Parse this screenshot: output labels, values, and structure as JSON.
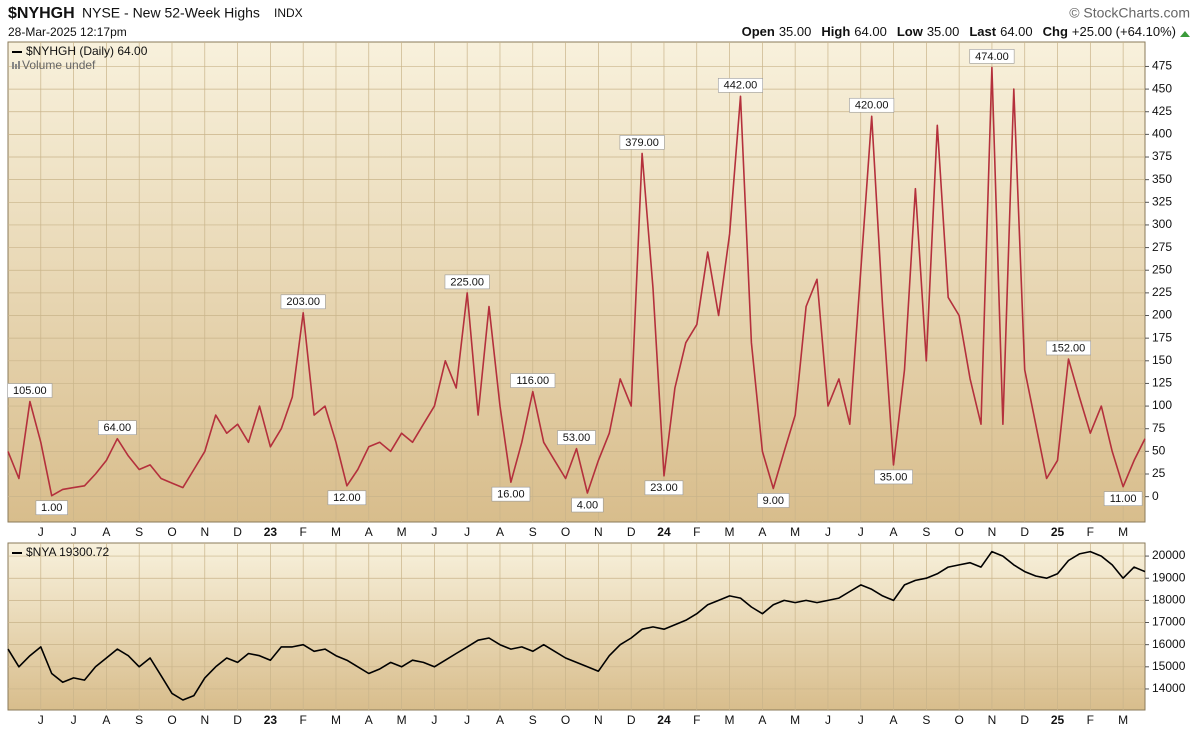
{
  "header": {
    "symbol": "$NYHGH",
    "name": "NYSE - New 52-Week Highs",
    "kind": "INDX",
    "source": "© StockCharts.com",
    "date": "28-Mar-2025 12:17pm",
    "quote": [
      {
        "label": "Open",
        "value": "35.00"
      },
      {
        "label": "High",
        "value": "64.00"
      },
      {
        "label": "Low",
        "value": "35.00"
      },
      {
        "label": "Last",
        "value": "64.00"
      },
      {
        "label": "Chg",
        "value": "+25.00 (+64.10%)"
      }
    ]
  },
  "chart_data": [
    {
      "type": "line",
      "title": "$NYHGH (Daily) 64.00",
      "subtitle": "Volume undef",
      "color": "#b4303c",
      "grid": true,
      "categories": [
        null,
        null,
        null,
        "J",
        null,
        null,
        "J",
        null,
        null,
        "A",
        null,
        null,
        "S",
        null,
        null,
        "O",
        null,
        null,
        "N",
        null,
        null,
        "D",
        null,
        null,
        "23",
        null,
        null,
        "F",
        null,
        null,
        "M",
        null,
        null,
        "A",
        null,
        null,
        "M",
        null,
        null,
        "J",
        null,
        null,
        "J",
        null,
        null,
        "A",
        null,
        null,
        "S",
        null,
        null,
        "O",
        null,
        null,
        "N",
        null,
        null,
        "D",
        null,
        null,
        "24",
        null,
        null,
        "F",
        null,
        null,
        "M",
        null,
        null,
        "A",
        null,
        null,
        "M",
        null,
        null,
        "J",
        null,
        null,
        "J",
        null,
        null,
        "A",
        null,
        null,
        "S",
        null,
        null,
        "O",
        null,
        null,
        "N",
        null,
        null,
        "D",
        null,
        null,
        "25",
        null,
        null,
        "F",
        null,
        null,
        "M",
        null,
        null
      ],
      "values": [
        50,
        20,
        105,
        60,
        1,
        8,
        10,
        12,
        25,
        40,
        64,
        45,
        30,
        35,
        20,
        15,
        10,
        30,
        50,
        90,
        70,
        80,
        60,
        100,
        55,
        75,
        110,
        203,
        90,
        100,
        60,
        12,
        30,
        55,
        60,
        50,
        70,
        60,
        80,
        100,
        150,
        120,
        225,
        90,
        210,
        100,
        16,
        60,
        116,
        60,
        40,
        20,
        53,
        4,
        40,
        70,
        130,
        100,
        379,
        230,
        23,
        120,
        170,
        190,
        270,
        200,
        290,
        442,
        170,
        50,
        9,
        50,
        90,
        210,
        240,
        100,
        130,
        80,
        250,
        420,
        210,
        35,
        140,
        340,
        150,
        410,
        220,
        200,
        130,
        80,
        474,
        80,
        450,
        140,
        80,
        20,
        40,
        152,
        110,
        70,
        100,
        50,
        11,
        40,
        64
      ],
      "value_labels": [
        null,
        null,
        "105.00",
        null,
        "1.00",
        null,
        null,
        null,
        null,
        null,
        "64.00",
        null,
        null,
        null,
        null,
        null,
        null,
        null,
        null,
        null,
        null,
        null,
        null,
        null,
        null,
        null,
        null,
        "203.00",
        null,
        null,
        null,
        "12.00",
        null,
        null,
        null,
        null,
        null,
        null,
        null,
        null,
        null,
        null,
        "225.00",
        null,
        null,
        null,
        "16.00",
        null,
        "116.00",
        null,
        null,
        null,
        "53.00",
        "4.00",
        null,
        null,
        null,
        null,
        "379.00",
        null,
        "23.00",
        null,
        null,
        null,
        null,
        null,
        null,
        "442.00",
        null,
        null,
        "9.00",
        null,
        null,
        null,
        null,
        null,
        null,
        null,
        null,
        "420.00",
        null,
        "35.00",
        null,
        null,
        null,
        null,
        null,
        null,
        null,
        null,
        "474.00",
        null,
        null,
        null,
        null,
        null,
        null,
        "152.00",
        null,
        null,
        null,
        null,
        "11.00",
        null,
        null
      ],
      "ylim": [
        -28,
        502
      ],
      "yticks": [
        0,
        25,
        50,
        75,
        100,
        125,
        150,
        175,
        200,
        225,
        250,
        275,
        300,
        325,
        350,
        375,
        400,
        425,
        450,
        475
      ]
    },
    {
      "type": "line",
      "title": "$NYA 19300.72",
      "color": "#000000",
      "grid": true,
      "categories": [
        null,
        null,
        null,
        "J",
        null,
        null,
        "J",
        null,
        null,
        "A",
        null,
        null,
        "S",
        null,
        null,
        "O",
        null,
        null,
        "N",
        null,
        null,
        "D",
        null,
        null,
        "23",
        null,
        null,
        "F",
        null,
        null,
        "M",
        null,
        null,
        "A",
        null,
        null,
        "M",
        null,
        null,
        "J",
        null,
        null,
        "J",
        null,
        null,
        "A",
        null,
        null,
        "S",
        null,
        null,
        "O",
        null,
        null,
        "N",
        null,
        null,
        "D",
        null,
        null,
        "24",
        null,
        null,
        "F",
        null,
        null,
        "M",
        null,
        null,
        "A",
        null,
        null,
        "M",
        null,
        null,
        "J",
        null,
        null,
        "J",
        null,
        null,
        "A",
        null,
        null,
        "S",
        null,
        null,
        "O",
        null,
        null,
        "N",
        null,
        null,
        "D",
        null,
        null,
        "25",
        null,
        null,
        "F",
        null,
        null,
        "M",
        null,
        null
      ],
      "values": [
        15800,
        15000,
        15500,
        15900,
        14700,
        14300,
        14500,
        14400,
        15000,
        15400,
        15800,
        15500,
        15000,
        15400,
        14600,
        13800,
        13500,
        13700,
        14500,
        15000,
        15400,
        15200,
        15600,
        15500,
        15300,
        15900,
        15900,
        16000,
        15700,
        15800,
        15500,
        15300,
        15000,
        14700,
        14900,
        15200,
        15000,
        15300,
        15200,
        15000,
        15300,
        15600,
        15900,
        16200,
        16300,
        16000,
        15800,
        15900,
        15700,
        16000,
        15700,
        15400,
        15200,
        15000,
        14800,
        15500,
        16000,
        16300,
        16700,
        16800,
        16700,
        16900,
        17100,
        17400,
        17800,
        18000,
        18200,
        18100,
        17700,
        17400,
        17800,
        18000,
        17900,
        18000,
        17900,
        18000,
        18100,
        18400,
        18700,
        18500,
        18200,
        18000,
        18700,
        18900,
        19000,
        19200,
        19500,
        19600,
        19700,
        19500,
        20200,
        20000,
        19600,
        19300,
        19100,
        19000,
        19200,
        19800,
        20100,
        20200,
        20000,
        19600,
        19000,
        19500,
        19300
      ],
      "ylim": [
        13050,
        20590
      ],
      "yticks": [
        14000,
        15000,
        16000,
        17000,
        18000,
        19000,
        20000
      ]
    }
  ]
}
